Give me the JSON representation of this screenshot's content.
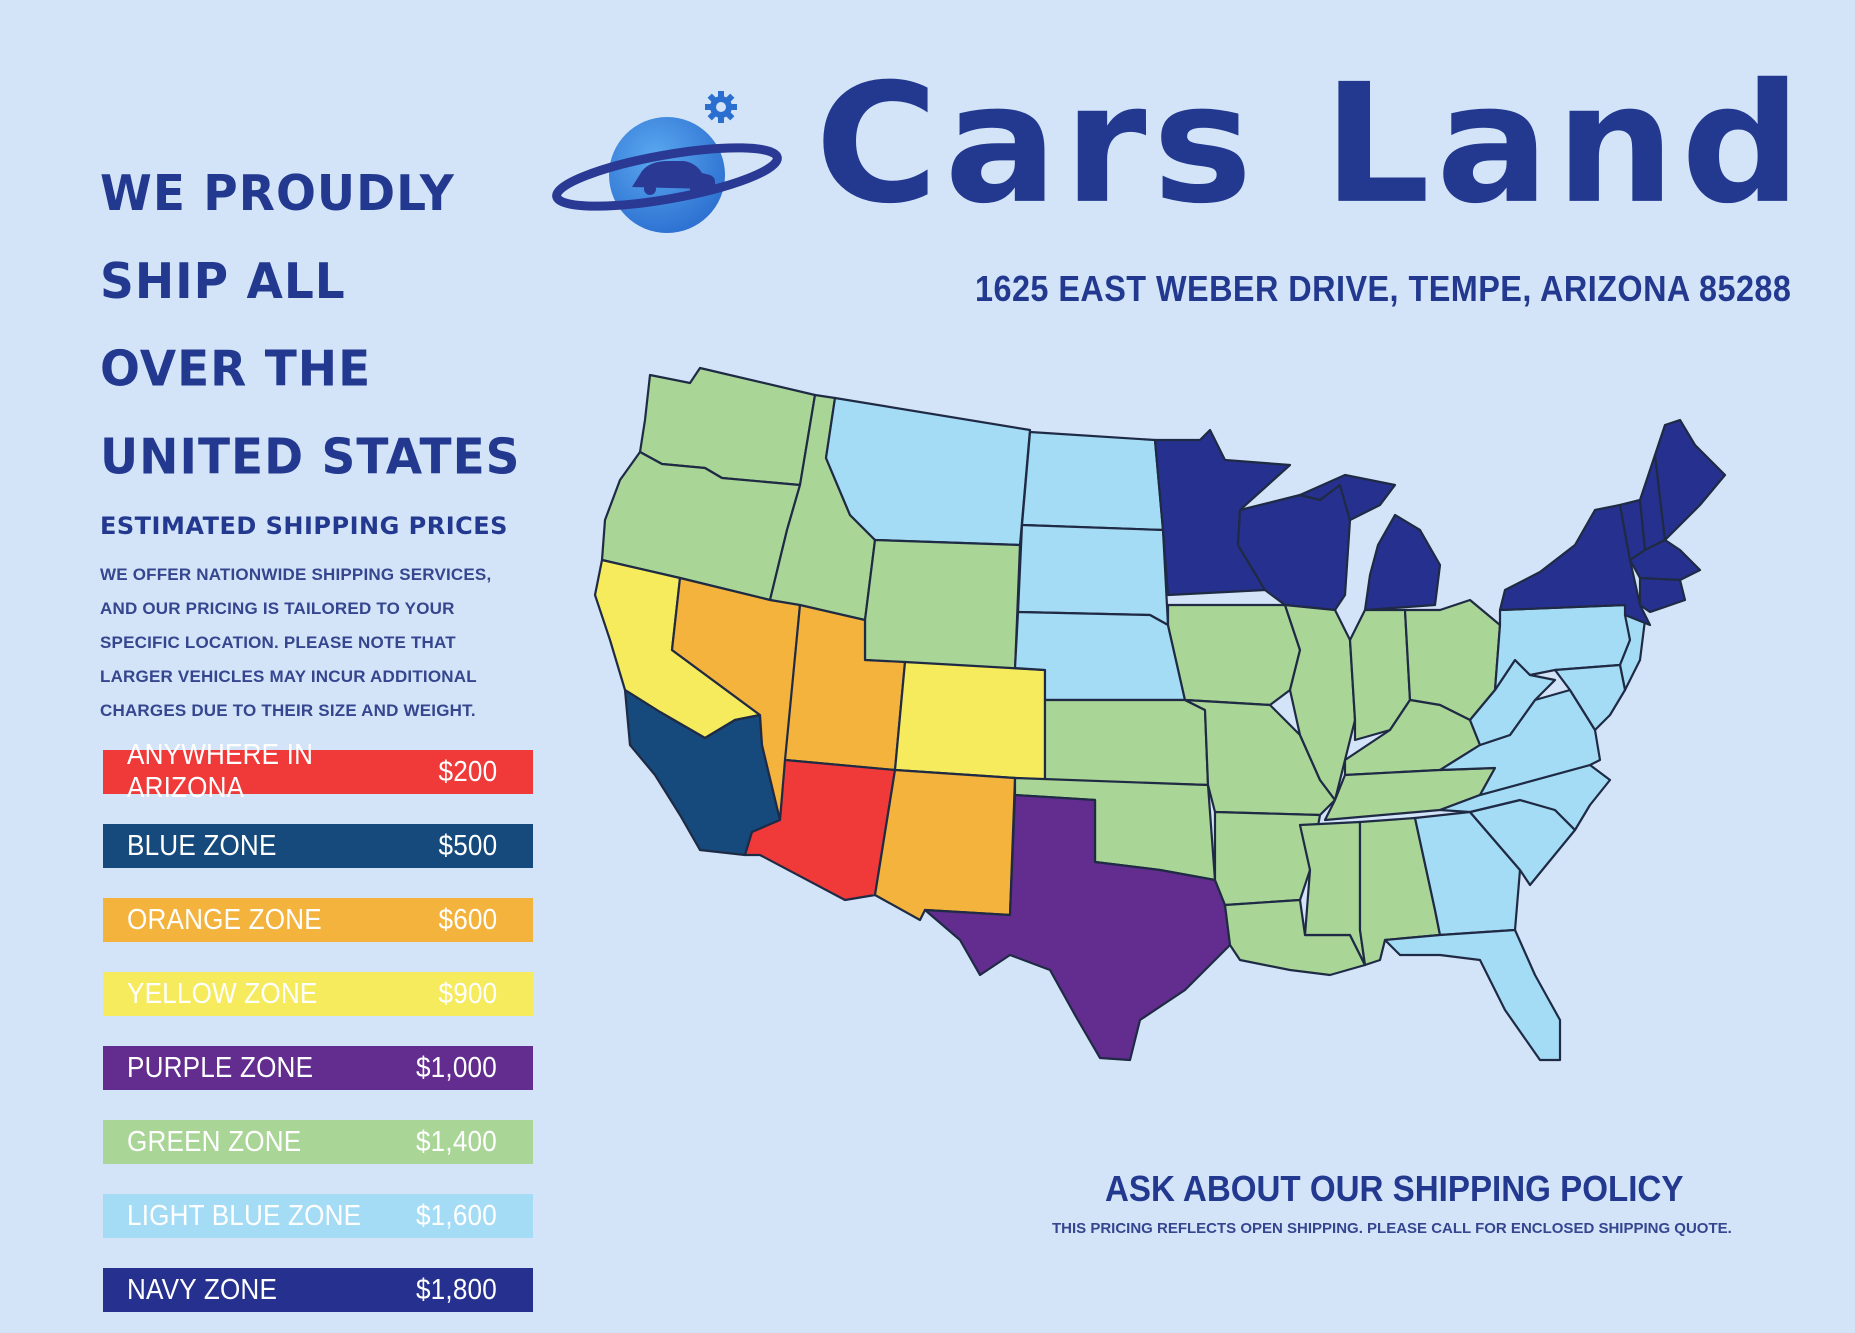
{
  "headline": {
    "lines": [
      "WE PROUDLY",
      "SHIP ALL",
      "OVER THE",
      "UNITED STATES"
    ]
  },
  "pricing": {
    "heading": "ESTIMATED SHIPPING PRICES",
    "description": "WE OFFER NATIONWIDE SHIPPING SERVICES, AND OUR PRICING IS TAILORED TO YOUR SPECIFIC LOCATION. PLEASE NOTE THAT LARGER VEHICLES MAY INCUR ADDITIONAL CHARGES DUE TO THEIR SIZE AND WEIGHT.",
    "zones": [
      {
        "name": "ANYWHERE IN ARIZONA",
        "price": "$200",
        "color": "#f03a3a"
      },
      {
        "name": "BLUE ZONE",
        "price": "$500",
        "color": "#164a7c"
      },
      {
        "name": "ORANGE ZONE",
        "price": "$600",
        "color": "#f3b33c"
      },
      {
        "name": "YELLOW ZONE",
        "price": "$900",
        "color": "#f5eb5c"
      },
      {
        "name": "PURPLE ZONE",
        "price": "$1,000",
        "color": "#632c8f"
      },
      {
        "name": "GREEN ZONE",
        "price": "$1,400",
        "color": "#a9d597"
      },
      {
        "name": "LIGHT BLUE ZONE",
        "price": "$1,600",
        "color": "#a5dcf5"
      },
      {
        "name": "NAVY ZONE",
        "price": "$1,800",
        "color": "#26318f"
      }
    ]
  },
  "brand": {
    "name": "Cars Land",
    "address": "1625 EAST WEBER DRIVE, TEMPE, ARIZONA 85288",
    "logo_icon": "planet-car-icon"
  },
  "footer": {
    "policy_title": "ASK ABOUT OUR SHIPPING POLICY",
    "policy_note": "THIS PRICING REFLECTS OPEN SHIPPING. PLEASE CALL FOR ENCLOSED SHIPPING QUOTE."
  },
  "map": {
    "region": "United States",
    "zones": {
      "arizona": [
        "Arizona"
      ],
      "blue": [
        "Southern California"
      ],
      "orange": [
        "Nevada",
        "Utah",
        "New Mexico"
      ],
      "yellow": [
        "Northern California",
        "Colorado"
      ],
      "purple": [
        "Texas"
      ],
      "green": [
        "Washington",
        "Oregon",
        "Idaho",
        "Wyoming",
        "Kansas",
        "Oklahoma",
        "Iowa",
        "Missouri",
        "Arkansas",
        "Louisiana",
        "Mississippi",
        "Alabama",
        "Illinois",
        "Indiana",
        "Ohio",
        "Kentucky",
        "Tennessee"
      ],
      "light_blue": [
        "Montana",
        "North Dakota",
        "South Dakota",
        "Nebraska",
        "Pennsylvania",
        "New Jersey",
        "Delaware",
        "Maryland",
        "West Virginia",
        "Virginia",
        "North Carolina",
        "South Carolina",
        "Georgia",
        "Florida"
      ],
      "navy": [
        "Minnesota",
        "Wisconsin",
        "Michigan",
        "New York",
        "Vermont",
        "New Hampshire",
        "Maine",
        "Massachusetts",
        "Connecticut",
        "Rhode Island"
      ]
    }
  }
}
